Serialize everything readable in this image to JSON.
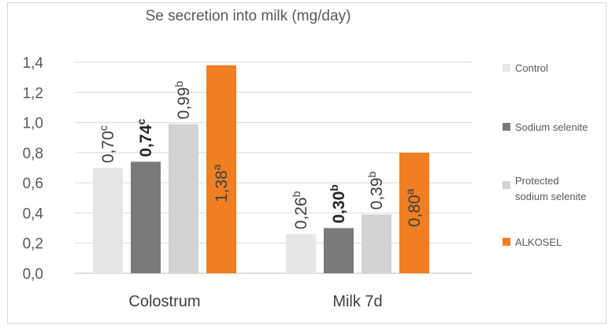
{
  "chart_data": {
    "type": "bar",
    "title": "Se secretion into milk (mg/day)",
    "xlabel": "",
    "ylabel": "",
    "categories": [
      "Colostrum",
      "Milk 7d"
    ],
    "ylim": [
      0,
      1.4
    ],
    "yticks": [
      "0,0",
      "0,2",
      "0,4",
      "0,6",
      "0,8",
      "1,0",
      "1,2",
      "1,4"
    ],
    "grid": true,
    "legend_position": "right",
    "series": [
      {
        "name": "Control",
        "color": "#e6e6e6",
        "values": [
          0.7,
          0.26
        ],
        "labels": [
          "0,70",
          "0,26"
        ],
        "letters": [
          "c",
          "b"
        ],
        "label_color": "#404040",
        "bold": false
      },
      {
        "name": "Sodium selenite",
        "color": "#7a7a7a",
        "values": [
          0.74,
          0.3
        ],
        "labels": [
          "0,74",
          "0,30"
        ],
        "letters": [
          "c",
          "b"
        ],
        "label_color": "#262626",
        "bold": true
      },
      {
        "name": "Protected sodium selenite",
        "color": "#d4d2d2",
        "values": [
          0.99,
          0.39
        ],
        "labels": [
          "0,99",
          "0,39"
        ],
        "letters": [
          "b",
          "b"
        ],
        "label_color": "#404040",
        "bold": false
      },
      {
        "name": "ALKOSEL",
        "color": "#f07f22",
        "values": [
          1.38,
          0.8
        ],
        "labels": [
          "1,38",
          "0,80"
        ],
        "letters": [
          "a",
          "a"
        ],
        "label_color": "#404040",
        "bold": false
      }
    ]
  }
}
